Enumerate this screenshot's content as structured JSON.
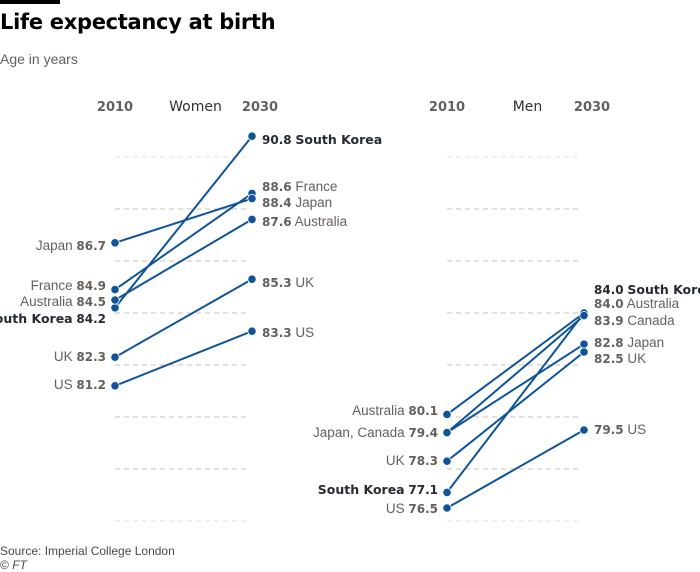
{
  "header": {
    "title": "Life expectancy at birth",
    "subtitle": "Age in years"
  },
  "footer": {
    "source": "Source: Imperial College London",
    "copyright_symbol": "©",
    "copyright_org": "FT"
  },
  "colors": {
    "line": "#0f5499",
    "grid": "#ccc1b7",
    "text": "#66605c",
    "highlight_text": "#262a33"
  },
  "chart_data": [
    {
      "type": "slope",
      "title": "Women",
      "x": [
        "2010",
        "2030"
      ],
      "ylim": [
        76,
        90
      ],
      "grid": true,
      "y_grid_values": [
        76,
        78,
        80,
        82,
        84,
        86,
        88,
        90
      ],
      "series": [
        {
          "name": "South Korea",
          "values": [
            84.2,
            90.8
          ],
          "highlight": true
        },
        {
          "name": "France",
          "values": [
            84.9,
            88.6
          ],
          "highlight": false
        },
        {
          "name": "Japan",
          "values": [
            86.7,
            88.4
          ],
          "highlight": false
        },
        {
          "name": "Australia",
          "values": [
            84.5,
            87.6
          ],
          "highlight": false
        },
        {
          "name": "UK",
          "values": [
            82.3,
            85.3
          ],
          "highlight": false
        },
        {
          "name": "US",
          "values": [
            81.2,
            83.3
          ],
          "highlight": false
        }
      ],
      "left_labels": [
        {
          "text": "Japan",
          "value": "86.7",
          "highlight": false
        },
        {
          "text": "France",
          "value": "84.9",
          "highlight": false
        },
        {
          "text": "Australia",
          "value": "84.5",
          "highlight": false
        },
        {
          "text": "South Korea",
          "value": "84.2",
          "highlight": true
        },
        {
          "text": "UK",
          "value": "82.3",
          "highlight": false
        },
        {
          "text": "US",
          "value": "81.2",
          "highlight": false
        }
      ],
      "right_labels": [
        {
          "text": "South Korea",
          "value": "90.8",
          "highlight": true
        },
        {
          "text": "France",
          "value": "88.6",
          "highlight": false
        },
        {
          "text": "Japan",
          "value": "88.4",
          "highlight": false
        },
        {
          "text": "Australia",
          "value": "87.6",
          "highlight": false
        },
        {
          "text": "UK",
          "value": "85.3",
          "highlight": false
        },
        {
          "text": "US",
          "value": "83.3",
          "highlight": false
        }
      ]
    },
    {
      "type": "slope",
      "title": "Men",
      "x": [
        "2010",
        "2030"
      ],
      "ylim": [
        76,
        90
      ],
      "grid": true,
      "y_grid_values": [
        76,
        78,
        80,
        82,
        84,
        86,
        88,
        90
      ],
      "series": [
        {
          "name": "South Korea",
          "values": [
            77.1,
            84.0
          ],
          "highlight": true
        },
        {
          "name": "Australia",
          "values": [
            80.1,
            84.0
          ],
          "highlight": false
        },
        {
          "name": "Canada",
          "values": [
            79.4,
            83.9
          ],
          "highlight": false
        },
        {
          "name": "Japan",
          "values": [
            79.4,
            82.8
          ],
          "highlight": false
        },
        {
          "name": "UK",
          "values": [
            78.3,
            82.5
          ],
          "highlight": false
        },
        {
          "name": "US",
          "values": [
            76.5,
            79.5
          ],
          "highlight": false
        }
      ],
      "left_labels": [
        {
          "text": "Australia",
          "value": "80.1",
          "highlight": false
        },
        {
          "text": "Japan, Canada",
          "value": "79.4",
          "highlight": false
        },
        {
          "text": "UK",
          "value": "78.3",
          "highlight": false
        },
        {
          "text": "South Korea",
          "value": "77.1",
          "highlight": true
        },
        {
          "text": "US",
          "value": "76.5",
          "highlight": false
        }
      ],
      "right_labels": [
        {
          "text": "South Korea",
          "value": "84.0",
          "highlight": true
        },
        {
          "text": "Australia",
          "value": "84.0",
          "highlight": false
        },
        {
          "text": "Canada",
          "value": "83.9",
          "highlight": false
        },
        {
          "text": "Japan",
          "value": "82.8",
          "highlight": false
        },
        {
          "text": "UK",
          "value": "82.5",
          "highlight": false
        },
        {
          "text": "US",
          "value": "79.5",
          "highlight": false
        }
      ]
    }
  ]
}
